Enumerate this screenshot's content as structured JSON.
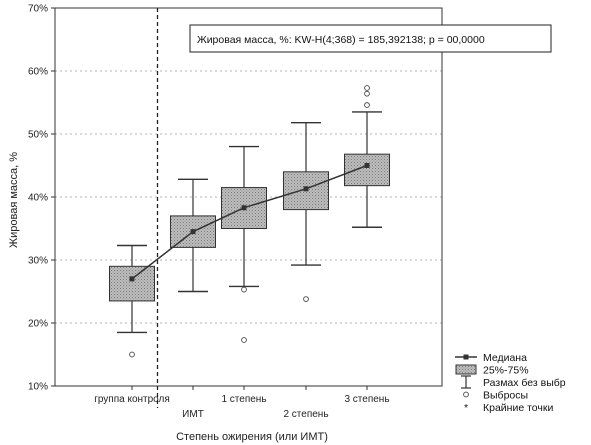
{
  "chart_data": {
    "type": "box",
    "ylabel": "Жировая масса, %",
    "xlabel": "Степень ожирения (или ИМТ)",
    "ylim": [
      10,
      70
    ],
    "yticks": [
      10,
      20,
      30,
      40,
      50,
      60,
      70
    ],
    "ytick_labels": [
      "10%",
      "20%",
      "30%",
      "40%",
      "50%",
      "60%",
      "70%"
    ],
    "grid": "horizontal dashed",
    "annotation": "Жировая масса, %:  KW-H(4;368) = 185,392138; p = 00,0000",
    "categories": [
      {
        "label": "группа контроля",
        "row": 1,
        "median": 27,
        "q1": 23.5,
        "q3": 29,
        "whisker_low": 18.5,
        "whisker_high": 32.3,
        "outliers": [
          15
        ]
      },
      {
        "label": "ИМТ",
        "row": 2,
        "median": 34.5,
        "q1": 32,
        "q3": 37,
        "whisker_low": 25,
        "whisker_high": 42.8,
        "outliers": []
      },
      {
        "label": "1 степень",
        "row": 1,
        "median": 38.3,
        "q1": 35,
        "q3": 41.5,
        "whisker_low": 25.8,
        "whisker_high": 48,
        "outliers": [
          25.3,
          17.3
        ]
      },
      {
        "label": "2 степень",
        "row": 2,
        "median": 41.3,
        "q1": 38,
        "q3": 44,
        "whisker_low": 29.2,
        "whisker_high": 51.8,
        "outliers": [
          23.8
        ]
      },
      {
        "label": "3 степень",
        "row": 1,
        "median": 45,
        "q1": 41.8,
        "q3": 46.8,
        "whisker_low": 35.2,
        "whisker_high": 53.5,
        "outliers": [
          54.6,
          56.4,
          57.3
        ]
      }
    ],
    "divider_after_category": 0,
    "legend": {
      "placement": "bottom-right",
      "items": [
        {
          "kind": "median-line",
          "label": "Медиана"
        },
        {
          "kind": "box",
          "label": "25%-75%"
        },
        {
          "kind": "whisker",
          "label": "Размах без выбр"
        },
        {
          "kind": "outlier",
          "label": "Выбросы"
        },
        {
          "kind": "extreme",
          "label": "Крайние точки"
        }
      ]
    },
    "colors": {
      "box_fill": "#b9b9b9",
      "box_stroke": "#333333",
      "line": "#333333",
      "grid": "#9a9a9a",
      "divider": "#222222"
    }
  }
}
